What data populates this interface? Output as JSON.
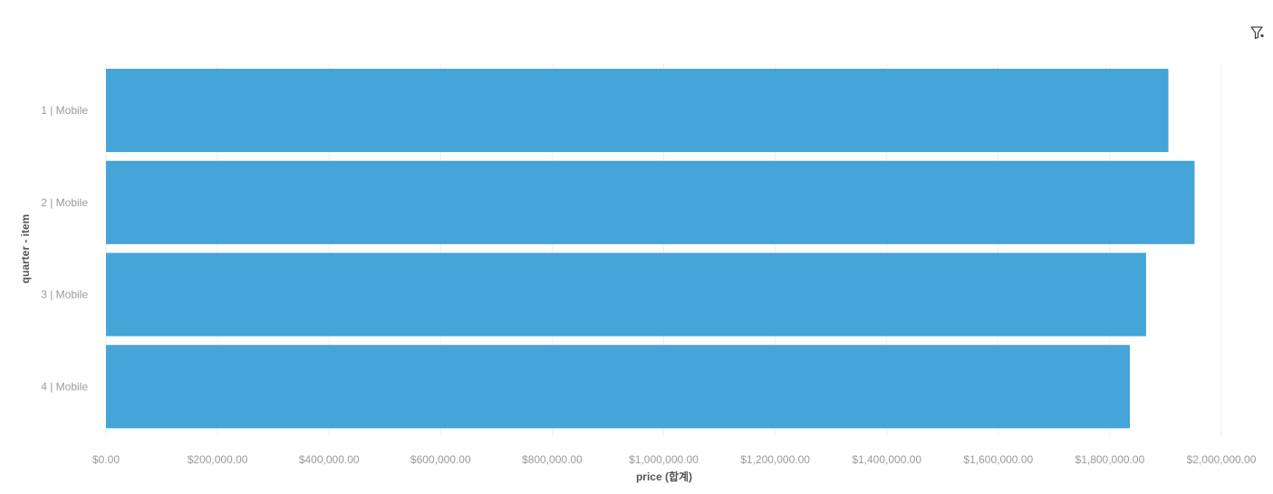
{
  "chart_data": {
    "type": "bar",
    "orientation": "horizontal",
    "categories": [
      "1 | Mobile",
      "2 | Mobile",
      "3 | Mobile",
      "4 | Mobile"
    ],
    "values": [
      1905000,
      1952000,
      1865000,
      1836000
    ],
    "xlabel": "price (합계)",
    "ylabel": "quarter - item",
    "xlim": [
      0,
      2000000
    ],
    "x_ticks": [
      0,
      200000,
      400000,
      600000,
      800000,
      1000000,
      1200000,
      1400000,
      1600000,
      1800000,
      2000000
    ],
    "x_tick_labels": [
      "$0.00",
      "$200,000.00",
      "$400,000.00",
      "$600,000.00",
      "$800,000.00",
      "$1,000,000.00",
      "$1,200,000.00",
      "$1,400,000.00",
      "$1,600,000.00",
      "$1,800,000.00",
      "$2,000,000.00"
    ],
    "bar_color": "#45a4d8",
    "grid": true
  },
  "toolbar": {
    "filter_icon": "filter-icon"
  }
}
